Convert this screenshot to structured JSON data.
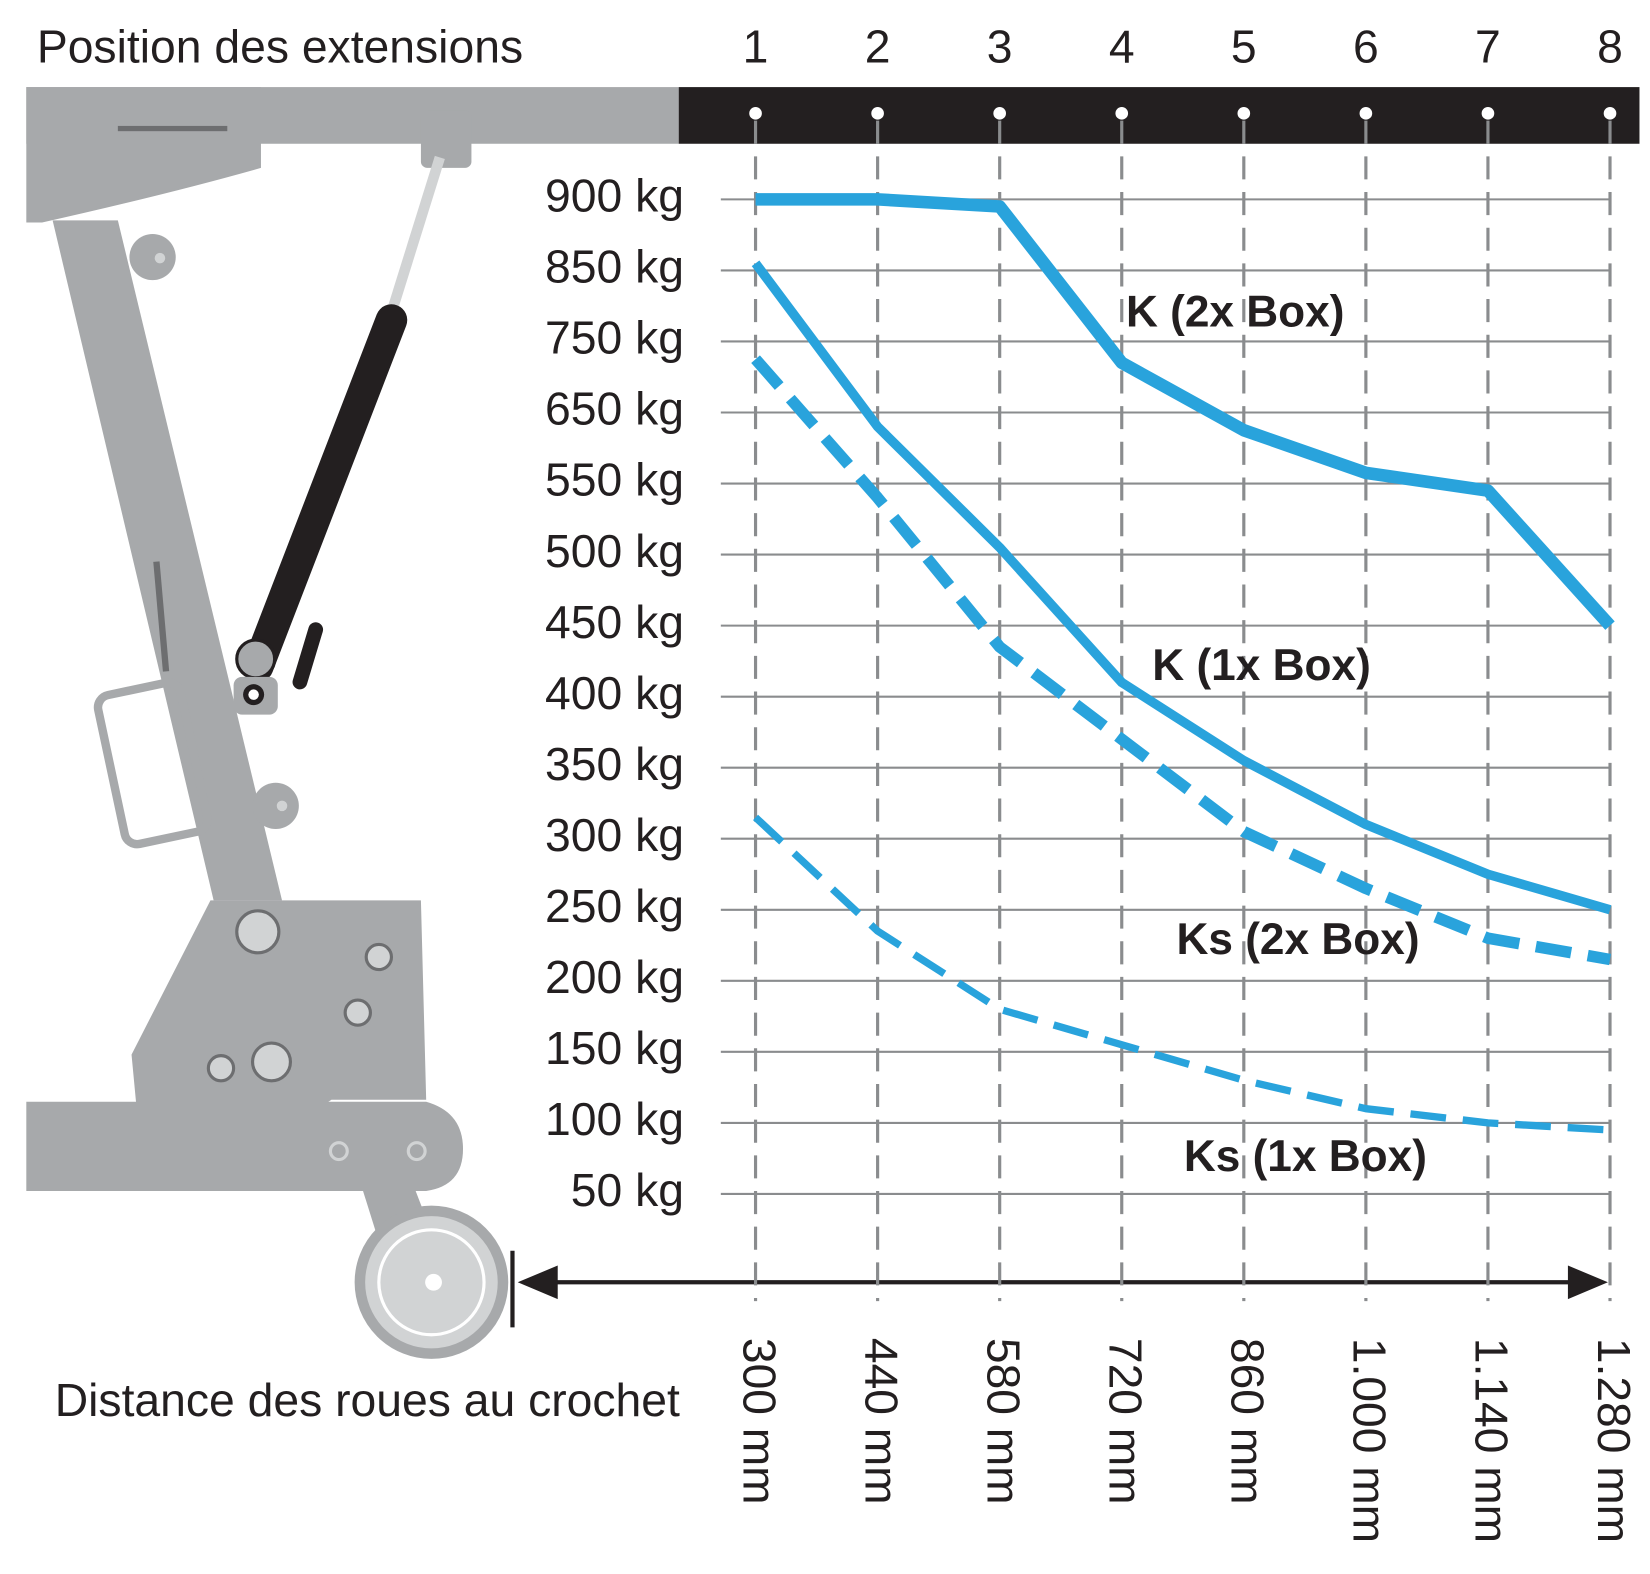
{
  "chart_data": {
    "type": "line",
    "title": "Position des extensions",
    "x_label": "Distance des roues au crochet",
    "positions": [
      "1",
      "2",
      "3",
      "4",
      "5",
      "6",
      "7",
      "8"
    ],
    "categories": [
      "300 mm",
      "440 mm",
      "580 mm",
      "720 mm",
      "860 mm",
      "1.000 mm",
      "1.140 mm",
      "1.280 mm"
    ],
    "yticks": [
      {
        "value": 900,
        "label": "900 kg"
      },
      {
        "value": 850,
        "label": "850 kg"
      },
      {
        "value": 750,
        "label": "750 kg"
      },
      {
        "value": 650,
        "label": "650 kg"
      },
      {
        "value": 550,
        "label": "550 kg"
      },
      {
        "value": 500,
        "label": "500 kg"
      },
      {
        "value": 450,
        "label": "450 kg"
      },
      {
        "value": 400,
        "label": "400 kg"
      },
      {
        "value": 350,
        "label": "350 kg"
      },
      {
        "value": 300,
        "label": "300 kg"
      },
      {
        "value": 250,
        "label": "250 kg"
      },
      {
        "value": 200,
        "label": "200 kg"
      },
      {
        "value": 150,
        "label": "150 kg"
      },
      {
        "value": 100,
        "label": "100 kg"
      },
      {
        "value": 50,
        "label": "50 kg"
      }
    ],
    "grid": true,
    "series": [
      {
        "name": "K (2x Box)",
        "color": "#29a3dc",
        "style": "solid",
        "values": [
          900,
          900,
          895,
          720,
          625,
          565,
          545,
          450
        ]
      },
      {
        "name": "K (1x Box)",
        "color": "#29a3dc",
        "style": "solid",
        "values": [
          855,
          630,
          505,
          410,
          355,
          310,
          275,
          250
        ]
      },
      {
        "name": "Ks (2x Box)",
        "color": "#29a3dc",
        "style": "dashed",
        "values": [
          725,
          540,
          435,
          370,
          305,
          265,
          230,
          215
        ]
      },
      {
        "name": "Ks (1x Box)",
        "color": "#29a3dc",
        "style": "dashed",
        "values": [
          315,
          235,
          180,
          155,
          130,
          110,
          100,
          95
        ]
      }
    ]
  }
}
